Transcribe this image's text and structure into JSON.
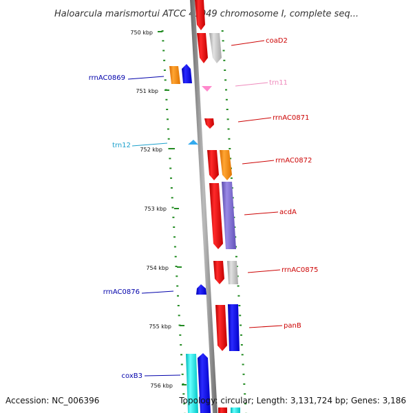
{
  "title": "Haloarcula marismortui ATCC 43049 chromosome I, complete seq...",
  "accession": "Accession: NC_006396",
  "topology": "Topology: circular; Length: 3,131,724 bp; Genes: 3,186",
  "kbp_labels": [
    "750 kbp",
    "751 kbp",
    "752 kbp",
    "753 kbp",
    "754 kbp",
    "755 kbp",
    "756 kbp"
  ],
  "genes": [
    {
      "label": "coaD2",
      "color": "#cc0000"
    },
    {
      "label": "rrnAC0869",
      "color": "#0000aa"
    },
    {
      "label": "trn11",
      "color": "#ee88bb"
    },
    {
      "label": "rrnAC0871",
      "color": "#cc0000"
    },
    {
      "label": "trn12",
      "color": "#1aa0cc"
    },
    {
      "label": "rrnAC0872",
      "color": "#cc0000"
    },
    {
      "label": "acdA",
      "color": "#cc0000"
    },
    {
      "label": "rrnAC0875",
      "color": "#cc0000"
    },
    {
      "label": "rrnAC0876",
      "color": "#0000aa"
    },
    {
      "label": "panB",
      "color": "#cc0000"
    },
    {
      "label": "coxB3",
      "color": "#0000aa"
    }
  ],
  "colors": {
    "red": "#e60000",
    "orange": "#ff8c00",
    "blue": "#0000ee",
    "gray": "#c0c0c0",
    "purple": "#7b68cc",
    "cyan": "#00e5e5",
    "pink": "#ff88cc",
    "lightblue": "#33aaee",
    "backbone": "#888888",
    "tick": "#228b22"
  }
}
